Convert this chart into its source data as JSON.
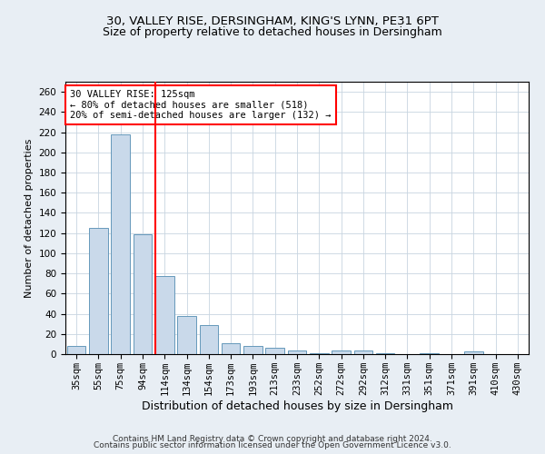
{
  "title_line1": "30, VALLEY RISE, DERSINGHAM, KING'S LYNN, PE31 6PT",
  "title_line2": "Size of property relative to detached houses in Dersingham",
  "xlabel": "Distribution of detached houses by size in Dersingham",
  "ylabel": "Number of detached properties",
  "categories": [
    "35sqm",
    "55sqm",
    "75sqm",
    "94sqm",
    "114sqm",
    "134sqm",
    "154sqm",
    "173sqm",
    "193sqm",
    "213sqm",
    "233sqm",
    "252sqm",
    "272sqm",
    "292sqm",
    "312sqm",
    "331sqm",
    "351sqm",
    "371sqm",
    "391sqm",
    "410sqm",
    "430sqm"
  ],
  "values": [
    8,
    125,
    218,
    119,
    77,
    38,
    29,
    11,
    8,
    6,
    4,
    1,
    4,
    4,
    1,
    0,
    1,
    0,
    3,
    0,
    0
  ],
  "bar_color": "#c9d9ea",
  "bar_edge_color": "#6699bb",
  "red_line_index": 4,
  "annotation_text": "30 VALLEY RISE: 125sqm\n← 80% of detached houses are smaller (518)\n20% of semi-detached houses are larger (132) →",
  "annotation_box_color": "white",
  "annotation_box_edge_color": "red",
  "red_line_color": "red",
  "ylim": [
    0,
    270
  ],
  "yticks": [
    0,
    20,
    40,
    60,
    80,
    100,
    120,
    140,
    160,
    180,
    200,
    220,
    240,
    260
  ],
  "footer_line1": "Contains HM Land Registry data © Crown copyright and database right 2024.",
  "footer_line2": "Contains public sector information licensed under the Open Government Licence v3.0.",
  "bg_color": "#e8eef4",
  "plot_bg_color": "#ffffff",
  "grid_color": "#c8d4e0",
  "title_fontsize": 9.5,
  "subtitle_fontsize": 9,
  "tick_fontsize": 7.5,
  "xlabel_fontsize": 9,
  "ylabel_fontsize": 8,
  "footer_fontsize": 6.5
}
